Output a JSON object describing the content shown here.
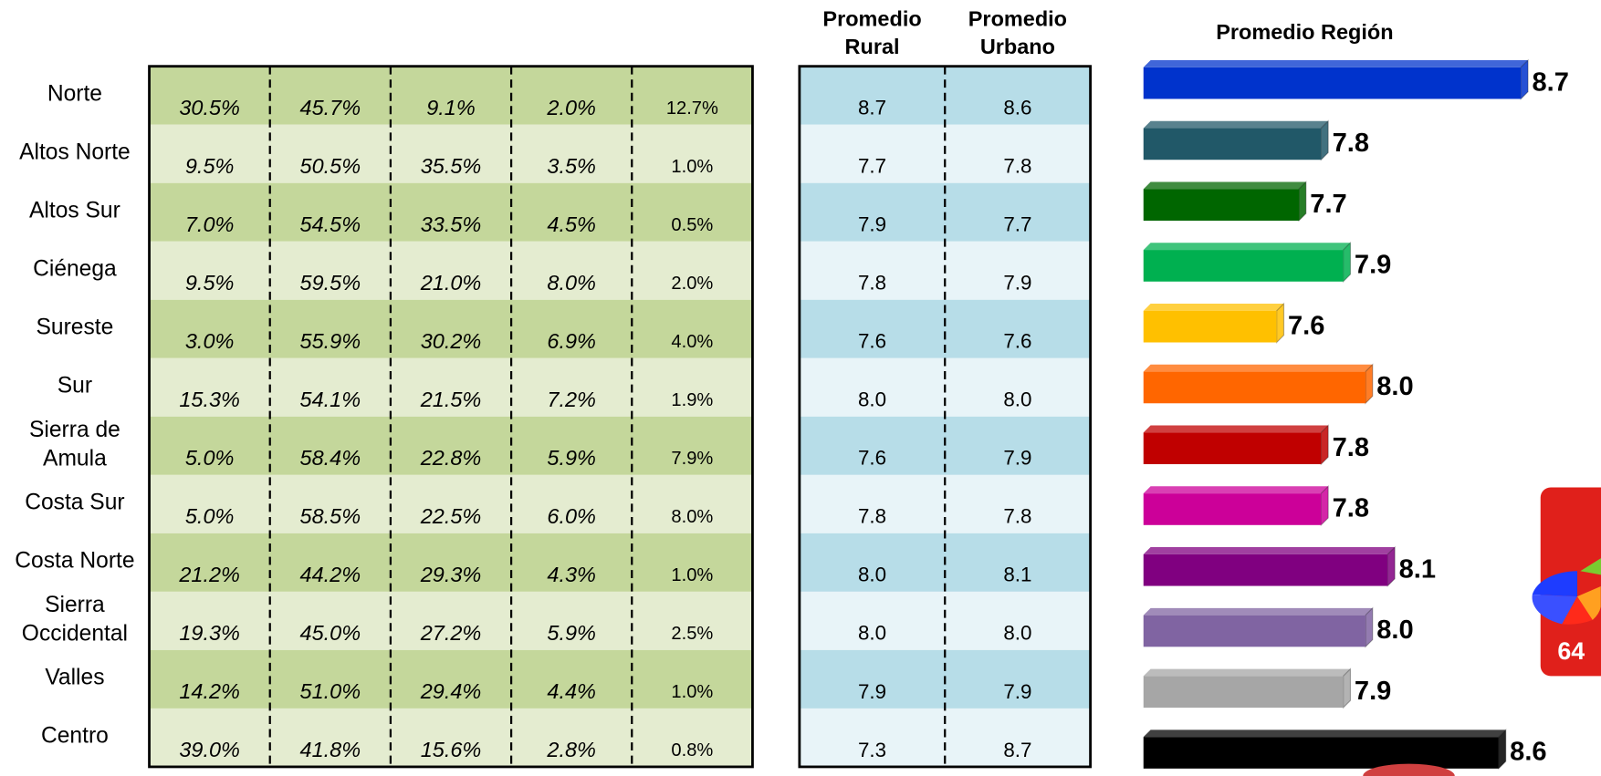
{
  "percent_table": {
    "rows": [
      [
        "30.5%",
        "45.7%",
        "9.1%",
        "2.0%",
        "12.7%"
      ],
      [
        "9.5%",
        "50.5%",
        "35.5%",
        "3.5%",
        "1.0%"
      ],
      [
        "7.0%",
        "54.5%",
        "33.5%",
        "4.5%",
        "0.5%"
      ],
      [
        "9.5%",
        "59.5%",
        "21.0%",
        "8.0%",
        "2.0%"
      ],
      [
        "3.0%",
        "55.9%",
        "30.2%",
        "6.9%",
        "4.0%"
      ],
      [
        "15.3%",
        "54.1%",
        "21.5%",
        "7.2%",
        "1.9%"
      ],
      [
        "5.0%",
        "58.4%",
        "22.8%",
        "5.9%",
        "7.9%"
      ],
      [
        "5.0%",
        "58.5%",
        "22.5%",
        "6.0%",
        "8.0%"
      ],
      [
        "21.2%",
        "44.2%",
        "29.3%",
        "4.3%",
        "1.0%"
      ],
      [
        "19.3%",
        "45.0%",
        "27.2%",
        "5.9%",
        "2.5%"
      ],
      [
        "14.2%",
        "51.0%",
        "29.4%",
        "4.4%",
        "1.0%"
      ],
      [
        "39.0%",
        "41.8%",
        "15.6%",
        "2.8%",
        "0.8%"
      ]
    ]
  },
  "averages_table": {
    "headers": [
      [
        "Promedio",
        "Rural"
      ],
      [
        "Promedio",
        "Urbano"
      ]
    ],
    "rows": [
      [
        "8.7",
        "8.6"
      ],
      [
        "7.7",
        "7.8"
      ],
      [
        "7.9",
        "7.7"
      ],
      [
        "7.8",
        "7.9"
      ],
      [
        "7.6",
        "7.6"
      ],
      [
        "8.0",
        "8.0"
      ],
      [
        "7.6",
        "7.9"
      ],
      [
        "7.8",
        "7.8"
      ],
      [
        "8.0",
        "8.1"
      ],
      [
        "8.0",
        "8.0"
      ],
      [
        "7.9",
        "7.9"
      ],
      [
        "7.3",
        "8.7"
      ]
    ]
  },
  "chart_data": {
    "type": "bar",
    "orientation": "horizontal",
    "title": "Promedio Región",
    "categories": [
      [
        "Norte"
      ],
      [
        "Altos Norte"
      ],
      [
        "Altos Sur"
      ],
      [
        "Ciénega"
      ],
      [
        "Sureste"
      ],
      [
        "Sur"
      ],
      [
        "Sierra de",
        "Amula"
      ],
      [
        "Costa Sur"
      ],
      [
        "Costa Norte"
      ],
      [
        "Sierra",
        "Occidental"
      ],
      [
        "Valles"
      ],
      [
        "Centro"
      ]
    ],
    "values": [
      8.7,
      7.8,
      7.7,
      7.9,
      7.6,
      8.0,
      7.8,
      7.8,
      8.1,
      8.0,
      7.9,
      8.6
    ],
    "value_labels": [
      "8.7",
      "7.8",
      "7.7",
      "7.9",
      "7.6",
      "8.0",
      "7.8",
      "7.8",
      "8.1",
      "8.0",
      "7.9",
      "8.6"
    ],
    "colors": [
      "#0033cc",
      "#215868",
      "#006600",
      "#00b050",
      "#ffc000",
      "#ff6600",
      "#c00000",
      "#cc0099",
      "#800080",
      "#8064a2",
      "#a6a6a6",
      "#000000"
    ],
    "xlim": [
      7,
      9
    ]
  },
  "page_number": "64"
}
